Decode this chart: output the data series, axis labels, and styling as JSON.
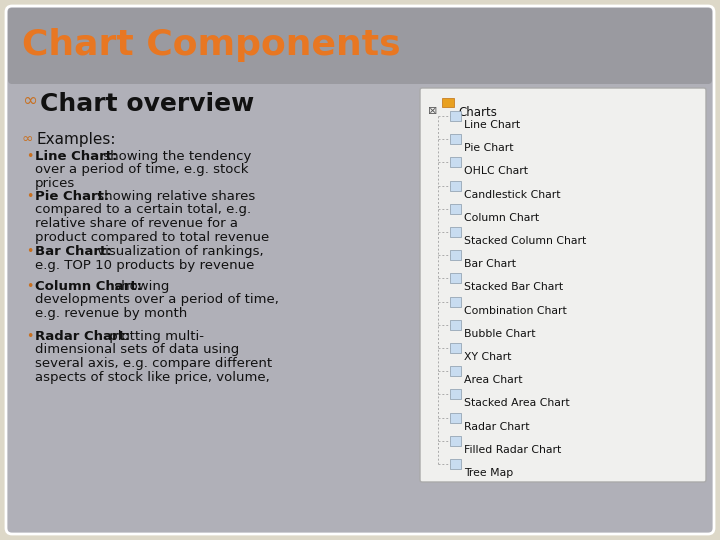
{
  "title": "Chart Components",
  "title_color": "#E87722",
  "outer_bg": "#DDD8C8",
  "slide_bg": "#B0B0B8",
  "title_bar_bg": "#9A9AA0",
  "section_header": "Chart overview",
  "section_bullet_color": "#C87020",
  "examples_label": "Examples:",
  "examples_bullet_color": "#C87020",
  "bullet_dot_color": "#C87020",
  "text_color": "#111111",
  "bullets": [
    {
      "bold": "Line Chart:",
      "rest_line1": " showing the tendency",
      "extra_lines": [
        "over a period of time, e.g. stock",
        "prices"
      ]
    },
    {
      "bold": "Pie Chart:",
      "rest_line1": " showing relative shares",
      "extra_lines": [
        "compared to a certain total, e.g.",
        "relative share of revenue for a",
        "product compared to total revenue"
      ]
    },
    {
      "bold": "Bar Chart:",
      "rest_line1": " visualization of rankings,",
      "extra_lines": [
        "e.g. TOP 10 products by revenue"
      ]
    },
    {
      "bold": "Column Chart:",
      "rest_line1": " showing",
      "extra_lines": [
        "developments over a period of time,",
        "e.g. revenue by month"
      ]
    },
    {
      "bold": "Radar Chart:",
      "rest_line1": " plotting multi-",
      "extra_lines": [
        "dimensional sets of data using",
        "several axis, e.g. compare different",
        "aspects of stock like price, volume,"
      ]
    }
  ],
  "tree_items": [
    "Line Chart",
    "Pie Chart",
    "OHLC Chart",
    "Candlestick Chart",
    "Column Chart",
    "Stacked Column Chart",
    "Bar Chart",
    "Stacked Bar Chart",
    "Combination Chart",
    "Bubble Chart",
    "XY Chart",
    "Area Chart",
    "Stacked Area Chart",
    "Radar Chart",
    "Filled Radar Chart",
    "Tree Map"
  ],
  "tree_root": "Charts",
  "tree_box_bg": "#F0F0EE",
  "tree_box_edge": "#AAAAAA",
  "tree_text_color": "#111111",
  "tree_line_color": "#AAAAAA"
}
